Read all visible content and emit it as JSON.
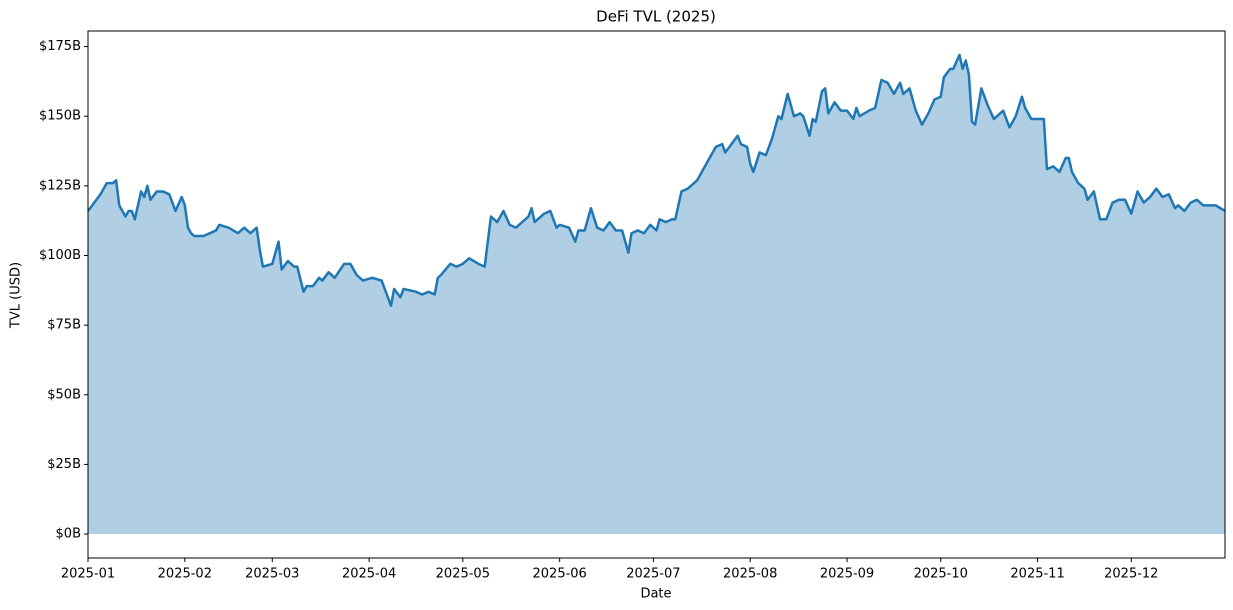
{
  "chart_data": {
    "type": "area",
    "title": "DeFi TVL (2025)",
    "xlabel": "Date",
    "ylabel": "TVL (USD)",
    "x": [
      0,
      4,
      6,
      8,
      9,
      10,
      12,
      13,
      14,
      15,
      17,
      18,
      19,
      20,
      22,
      24,
      26,
      28,
      30,
      31,
      32,
      33,
      34,
      37,
      41,
      42,
      45,
      48,
      50,
      52,
      54,
      55,
      56,
      59,
      61,
      62,
      64,
      66,
      67,
      69,
      70,
      72,
      74,
      75,
      77,
      79,
      82,
      84,
      86,
      88,
      91,
      94,
      96,
      97,
      98,
      100,
      101,
      105,
      107,
      109,
      111,
      112,
      113,
      116,
      118,
      120,
      122,
      125,
      127,
      128,
      129,
      131,
      133,
      135,
      137,
      139,
      141,
      142,
      143,
      146,
      148,
      150,
      151,
      154,
      156,
      157,
      159,
      161,
      163,
      165,
      167,
      169,
      171,
      173,
      174,
      176,
      178,
      180,
      182,
      183,
      185,
      187,
      188,
      190,
      192,
      195,
      197,
      199,
      201,
      203,
      204,
      206,
      208,
      209,
      211,
      212,
      213,
      215,
      217,
      219,
      221,
      222,
      224,
      226,
      228,
      229,
      231,
      232,
      233,
      235,
      236,
      237,
      239,
      241,
      243,
      245,
      246,
      247,
      250,
      252,
      254,
      256,
      258,
      260,
      261,
      263,
      265,
      267,
      269,
      271,
      273,
      274,
      276,
      277,
      279,
      280,
      281,
      282,
      283,
      284,
      286,
      288,
      290,
      291,
      293,
      295,
      297,
      299,
      300,
      302,
      304,
      306,
      307,
      309,
      311,
      313,
      314,
      315,
      317,
      319,
      320,
      322,
      324,
      326,
      328,
      330,
      332,
      334,
      336,
      338,
      340,
      342,
      344,
      346,
      348,
      349,
      351,
      353,
      355,
      357,
      359,
      361,
      364
    ],
    "series": [
      {
        "name": "TVL",
        "color": "#1f77b4",
        "fill": "#b0cfe4",
        "values": [
          116,
          122,
          126,
          126,
          127,
          118,
          114,
          116,
          116,
          113,
          123,
          121,
          125,
          120,
          123,
          123,
          122,
          116,
          121,
          118,
          110,
          108,
          107,
          107,
          109,
          111,
          110,
          108,
          110,
          108,
          110,
          102,
          96,
          97,
          105,
          95,
          98,
          96,
          96,
          87,
          89,
          89,
          92,
          91,
          94,
          92,
          97,
          97,
          93,
          91,
          92,
          91,
          85,
          82,
          88,
          85,
          88,
          87,
          86,
          87,
          86,
          92,
          93,
          97,
          96,
          97,
          99,
          97,
          96,
          105,
          114,
          112,
          116,
          111,
          110,
          112,
          114,
          117,
          112,
          115,
          116,
          110,
          111,
          110,
          105,
          109,
          109,
          117,
          110,
          109,
          112,
          109,
          109,
          101,
          108,
          109,
          108,
          111,
          109,
          113,
          112,
          113,
          113,
          123,
          124,
          127,
          131,
          135,
          139,
          140,
          137,
          140,
          143,
          140,
          139,
          133,
          130,
          137,
          136,
          142,
          150,
          149,
          158,
          150,
          151,
          150,
          143,
          149,
          148,
          159,
          160,
          151,
          155,
          152,
          152,
          149,
          153,
          150,
          152,
          153,
          163,
          162,
          158,
          162,
          158,
          160,
          152,
          147,
          151,
          156,
          157,
          164,
          167,
          167,
          172,
          167,
          170,
          165,
          148,
          147,
          160,
          154,
          149,
          150,
          152,
          146,
          150,
          157,
          153,
          149,
          149,
          149,
          131,
          132,
          130,
          135,
          135,
          130,
          126,
          124,
          120,
          123,
          113,
          113,
          119,
          120,
          120,
          115,
          123,
          119,
          121,
          124,
          121,
          122,
          117,
          118,
          116,
          119,
          120,
          118,
          118,
          118,
          116
        ]
      }
    ],
    "xlim": [
      0,
      364
    ],
    "ylim": [
      -8.6,
      180.6
    ],
    "xticks": [
      {
        "value": 0,
        "label": "2025-01"
      },
      {
        "value": 31,
        "label": "2025-02"
      },
      {
        "value": 59,
        "label": "2025-03"
      },
      {
        "value": 90,
        "label": "2025-04"
      },
      {
        "value": 120,
        "label": "2025-05"
      },
      {
        "value": 151,
        "label": "2025-06"
      },
      {
        "value": 181,
        "label": "2025-07"
      },
      {
        "value": 212,
        "label": "2025-08"
      },
      {
        "value": 243,
        "label": "2025-09"
      },
      {
        "value": 273,
        "label": "2025-10"
      },
      {
        "value": 304,
        "label": "2025-11"
      },
      {
        "value": 334,
        "label": "2025-12"
      }
    ],
    "yticks": [
      {
        "value": 0,
        "label": "$0B"
      },
      {
        "value": 25,
        "label": "$25B"
      },
      {
        "value": 50,
        "label": "$50B"
      },
      {
        "value": 75,
        "label": "$75B"
      },
      {
        "value": 100,
        "label": "$100B"
      },
      {
        "value": 125,
        "label": "$125B"
      },
      {
        "value": 150,
        "label": "$150B"
      },
      {
        "value": 175,
        "label": "$175B"
      }
    ]
  }
}
